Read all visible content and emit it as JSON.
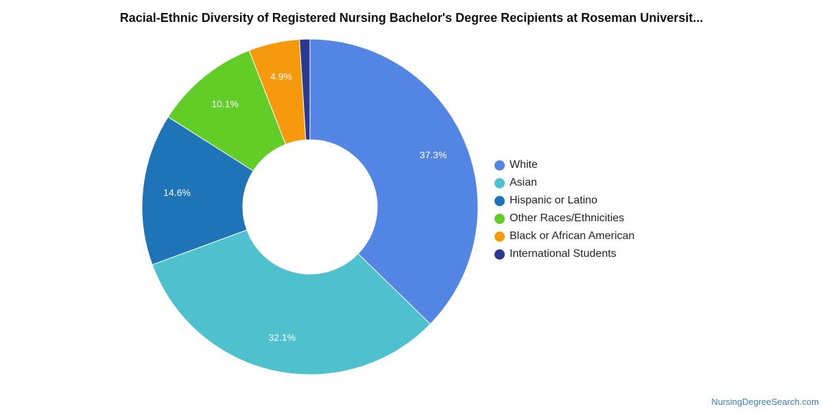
{
  "chart_data": {
    "type": "pie",
    "variant": "donut",
    "title": "Racial-Ethnic Diversity of Registered Nursing Bachelor's Degree Recipients at Roseman Universit...",
    "legend_position": "right",
    "series": [
      {
        "name": "White",
        "value": 37.3,
        "label": "37.3%",
        "color": "#5386e4"
      },
      {
        "name": "Asian",
        "value": 32.1,
        "label": "32.1%",
        "color": "#4fc0cd"
      },
      {
        "name": "Hispanic or Latino",
        "value": 14.6,
        "label": "14.6%",
        "color": "#1f73b7"
      },
      {
        "name": "Other Races/Ethnicities",
        "value": 10.1,
        "label": "10.1%",
        "color": "#63cd28"
      },
      {
        "name": "Black or African American",
        "value": 4.9,
        "label": "4.9%",
        "color": "#f7990c"
      },
      {
        "name": "International Students",
        "value": 1.0,
        "label": "",
        "color": "#2b3a8c"
      }
    ]
  },
  "footer": {
    "source": "NursingDegreeSearch.com"
  }
}
